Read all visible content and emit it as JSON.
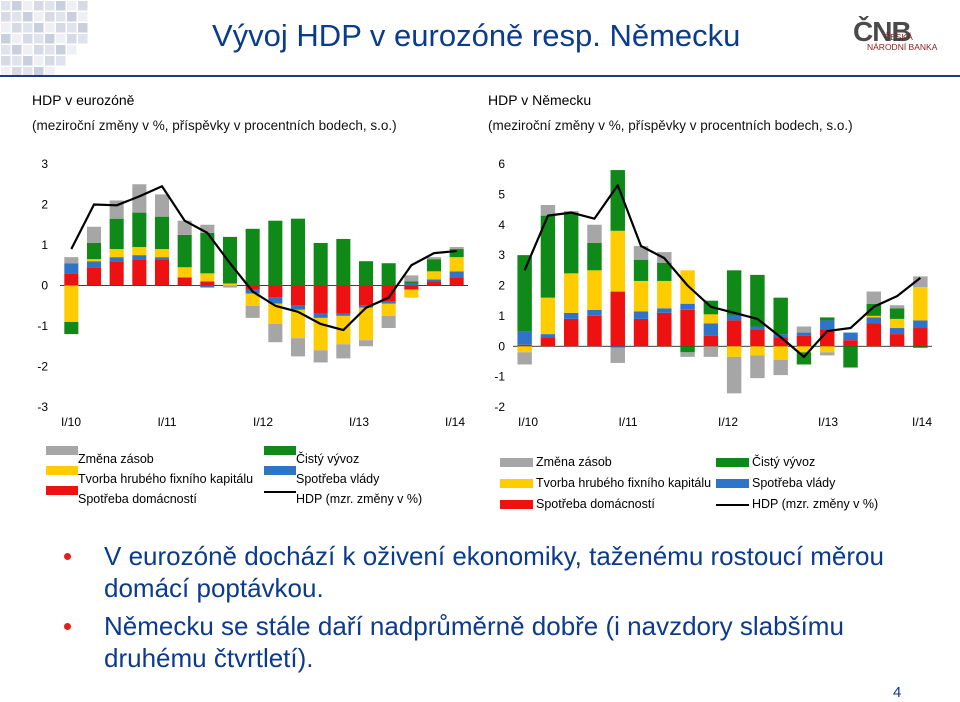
{
  "slide": {
    "title": "Vývoj HDP v eurozóně resp. Německu",
    "page_number": "4",
    "logo": {
      "mark": "ČNB",
      "line1": "ČESKÁ",
      "line2": "NÁRODNÍ BANKA"
    },
    "bullets": [
      "V eurozóně dochází k oživení ekonomiky, taženému rostoucí měrou domácí poptávkou.",
      "Německu se stále daří nadprůměrně dobře (i navzdory slabšímu druhému čtvrtletí)."
    ]
  },
  "colors": {
    "zmena_zasob": "#a6a6a6",
    "tvorba_kapitalu": "#ffcc00",
    "spotreba_domacnosti": "#ee1111",
    "cisty_vyvoz": "#0f8a18",
    "spotreba_vlady": "#2e75c9",
    "hdp": "#000000",
    "title_blue": "#0b3b8c"
  },
  "chart_data": [
    {
      "type": "bar",
      "stacked": true,
      "title": "HDP v eurozóně",
      "subtitle": "(meziroční změny v %, příspěvky v procentních bodech, s.o.)",
      "x_tick_labels": [
        "I/10",
        "I/11",
        "I/12",
        "I/13",
        "I/14"
      ],
      "ylim": [
        -3,
        3
      ],
      "yticks": [
        -3,
        -2,
        -1,
        0,
        1,
        2,
        3
      ],
      "legend": [
        {
          "key": "zmena_zasob",
          "label": "Změna zásob"
        },
        {
          "key": "cisty_vyvoz",
          "label": "Čistý vývoz"
        },
        {
          "key": "tvorba_kapitalu",
          "label": "Tvorba hrubého fixního kapitálu"
        },
        {
          "key": "spotreba_vlady",
          "label": "Spotřeba vlády"
        },
        {
          "key": "spotreba_domacnosti",
          "label": "Spotřeba domácností"
        },
        {
          "key": "hdp",
          "label": "HDP (mzr. změny v %)"
        }
      ],
      "series": [
        {
          "key": "spotreba_domacnosti",
          "values": [
            0.3,
            0.45,
            0.6,
            0.65,
            0.65,
            0.2,
            0.1,
            0.0,
            -0.1,
            -0.3,
            -0.5,
            -0.7,
            -0.7,
            -0.5,
            -0.4,
            -0.1,
            0.1,
            0.2
          ]
        },
        {
          "key": "spotreba_vlady",
          "values": [
            0.25,
            0.15,
            0.1,
            0.1,
            0.05,
            0.0,
            -0.05,
            0.0,
            -0.1,
            -0.15,
            -0.1,
            -0.1,
            -0.05,
            -0.05,
            -0.05,
            0.05,
            0.05,
            0.15
          ]
        },
        {
          "key": "tvorba_kapitalu",
          "values": [
            -0.9,
            0.05,
            0.2,
            0.2,
            0.2,
            0.25,
            0.2,
            0.05,
            -0.3,
            -0.5,
            -0.7,
            -0.8,
            -0.7,
            -0.8,
            -0.3,
            -0.2,
            0.2,
            0.35
          ]
        },
        {
          "key": "cisty_vyvoz",
          "values": [
            -0.3,
            0.4,
            0.75,
            0.85,
            0.8,
            0.8,
            1.0,
            1.15,
            1.4,
            1.6,
            1.65,
            1.05,
            1.15,
            0.6,
            0.55,
            0.05,
            0.3,
            0.2
          ]
        },
        {
          "key": "zmena_zasob",
          "values": [
            0.15,
            0.4,
            0.45,
            0.7,
            0.55,
            0.35,
            0.2,
            -0.05,
            -0.3,
            -0.45,
            -0.45,
            -0.3,
            -0.35,
            -0.15,
            -0.3,
            0.15,
            0.05,
            0.05
          ]
        }
      ],
      "line": {
        "key": "hdp",
        "values": [
          0.9,
          2.0,
          1.98,
          2.2,
          2.45,
          1.6,
          1.3,
          0.55,
          -0.15,
          -0.5,
          -0.65,
          -0.95,
          -1.1,
          -0.55,
          -0.3,
          0.5,
          0.8,
          0.85
        ]
      }
    },
    {
      "type": "bar",
      "stacked": true,
      "title": "HDP v Německu",
      "subtitle": "(meziroční změny v %, příspěvky v procentních bodech, s.o.)",
      "x_tick_labels": [
        "I/10",
        "I/11",
        "I/12",
        "I/13",
        "I/14"
      ],
      "ylim": [
        -2,
        6
      ],
      "yticks": [
        -2,
        -1,
        0,
        1,
        2,
        3,
        4,
        5,
        6
      ],
      "legend": [
        {
          "key": "zmena_zasob",
          "label": "Změna zásob"
        },
        {
          "key": "cisty_vyvoz",
          "label": "Čistý vývoz"
        },
        {
          "key": "tvorba_kapitalu",
          "label": "Tvorba hrubého fixního kapitálu"
        },
        {
          "key": "spotreba_vlady",
          "label": "Spotřeba vlády"
        },
        {
          "key": "spotreba_domacnosti",
          "label": "Spotřeba domácností"
        },
        {
          "key": "hdp",
          "label": "HDP (mzr. změny v %)"
        }
      ],
      "series": [
        {
          "key": "spotreba_domacnosti",
          "values": [
            0.05,
            0.3,
            0.9,
            1.0,
            1.8,
            0.9,
            1.1,
            1.2,
            0.35,
            0.85,
            0.55,
            0.3,
            0.35,
            0.55,
            0.2,
            0.75,
            0.4,
            0.6
          ]
        },
        {
          "key": "spotreba_vlady",
          "values": [
            0.45,
            0.1,
            0.2,
            0.2,
            -0.05,
            0.25,
            0.15,
            0.2,
            0.4,
            0.15,
            0.1,
            0.1,
            0.1,
            0.3,
            0.25,
            0.2,
            0.2,
            0.25
          ]
        },
        {
          "key": "tvorba_kapitalu",
          "values": [
            -0.2,
            1.2,
            1.3,
            1.3,
            2.0,
            1.0,
            0.9,
            1.1,
            0.3,
            -0.35,
            -0.3,
            -0.45,
            -0.2,
            -0.2,
            0.0,
            0.05,
            0.3,
            1.1
          ]
        },
        {
          "key": "cisty_vyvoz",
          "values": [
            2.5,
            2.7,
            2.0,
            0.9,
            2.0,
            0.7,
            0.6,
            -0.2,
            0.45,
            1.5,
            1.7,
            1.2,
            -0.4,
            0.1,
            -0.7,
            0.4,
            0.35,
            -0.05
          ]
        },
        {
          "key": "zmena_zasob",
          "values": [
            -0.4,
            0.35,
            0.05,
            0.6,
            -0.5,
            0.45,
            0.35,
            -0.15,
            -0.35,
            -1.2,
            -0.75,
            -0.5,
            0.2,
            -0.1,
            0.0,
            0.4,
            0.1,
            0.35
          ]
        }
      ],
      "line": {
        "key": "hdp",
        "values": [
          2.5,
          4.3,
          4.4,
          4.2,
          5.3,
          3.3,
          2.9,
          2.0,
          1.3,
          1.1,
          0.9,
          0.3,
          -0.35,
          0.5,
          0.6,
          1.3,
          1.65,
          2.25
        ]
      }
    }
  ]
}
